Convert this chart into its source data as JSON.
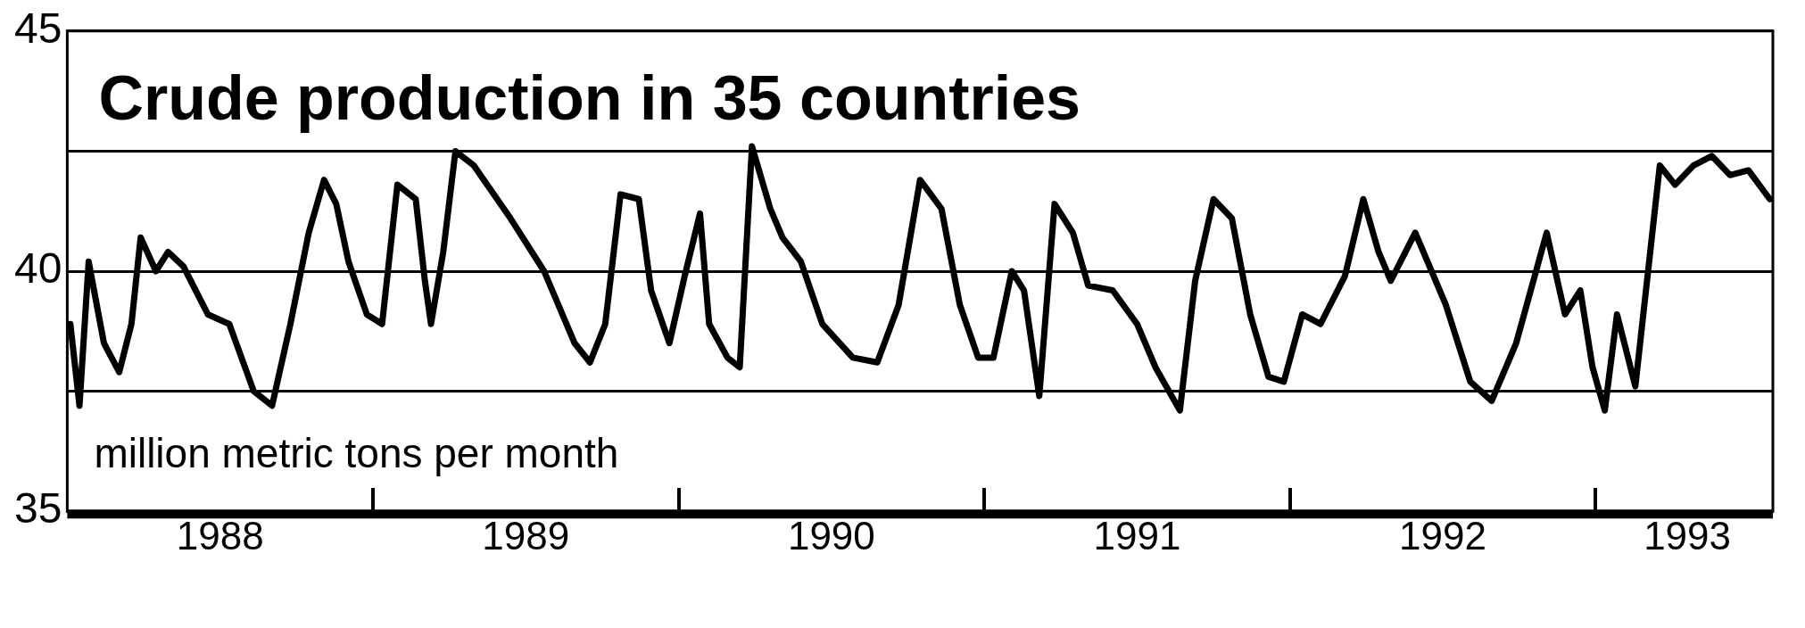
{
  "chart_data": {
    "type": "line",
    "title": "Crude production in 35 countries",
    "subtitle": "million metric tons per month",
    "x": [
      1988.01,
      1988.04,
      1988.07,
      1988.12,
      1988.17,
      1988.21,
      1988.24,
      1988.29,
      1988.33,
      1988.38,
      1988.46,
      1988.53,
      1988.61,
      1988.67,
      1988.73,
      1988.79,
      1988.84,
      1988.88,
      1988.92,
      1988.98,
      1989.03,
      1989.08,
      1989.14,
      1989.17,
      1989.19,
      1989.23,
      1989.27,
      1989.33,
      1989.45,
      1989.56,
      1989.66,
      1989.71,
      1989.76,
      1989.81,
      1989.87,
      1989.91,
      1989.97,
      1990.02,
      1990.07,
      1990.1,
      1990.16,
      1990.2,
      1990.24,
      1990.3,
      1990.34,
      1990.4,
      1990.47,
      1990.57,
      1990.65,
      1990.72,
      1990.79,
      1990.86,
      1990.92,
      1990.98,
      1991.03,
      1991.09,
      1991.13,
      1991.18,
      1991.23,
      1991.29,
      1991.34,
      1991.42,
      1991.5,
      1991.56,
      1991.64,
      1991.69,
      1991.75,
      1991.81,
      1991.87,
      1991.93,
      1991.98,
      1992.04,
      1992.1,
      1992.18,
      1992.24,
      1992.29,
      1992.33,
      1992.41,
      1992.51,
      1992.59,
      1992.66,
      1992.74,
      1992.84,
      1992.9,
      1992.95,
      1992.99,
      1993.03,
      1993.07,
      1993.13,
      1993.21,
      1993.26,
      1993.32,
      1993.38,
      1993.44,
      1993.5,
      1993.57
    ],
    "series": [
      {
        "color": "#000000",
        "values": [
          38.9,
          37.2,
          40.2,
          38.5,
          37.9,
          38.9,
          40.7,
          40.0,
          40.4,
          40.1,
          39.1,
          38.9,
          37.5,
          37.2,
          38.9,
          40.8,
          41.9,
          41.4,
          40.2,
          39.1,
          38.9,
          41.8,
          41.5,
          39.8,
          38.9,
          40.4,
          42.5,
          42.2,
          41.1,
          40.0,
          38.5,
          38.1,
          38.9,
          41.6,
          41.5,
          39.6,
          38.5,
          39.9,
          41.2,
          38.9,
          38.2,
          38.0,
          42.6,
          41.3,
          40.7,
          40.2,
          38.9,
          38.2,
          38.1,
          39.3,
          41.9,
          41.3,
          39.3,
          38.2,
          38.2,
          40.0,
          39.6,
          37.4,
          41.4,
          40.8,
          39.7,
          39.6,
          38.9,
          38.0,
          37.1,
          39.8,
          41.5,
          41.1,
          39.1,
          37.8,
          37.7,
          39.1,
          38.9,
          39.9,
          41.5,
          40.4,
          39.8,
          40.8,
          39.3,
          37.7,
          37.3,
          38.5,
          40.8,
          39.1,
          39.6,
          38.0,
          37.1,
          39.1,
          37.6,
          42.2,
          41.8,
          42.2,
          42.4,
          42.0,
          42.1,
          41.5
        ]
      }
    ],
    "xlim": [
      1988,
      1993.58
    ],
    "xticks": [
      {
        "value": 1988.5,
        "label": "1988"
      },
      {
        "value": 1989.5,
        "label": "1989"
      },
      {
        "value": 1990.5,
        "label": "1990"
      },
      {
        "value": 1991.5,
        "label": "1991"
      },
      {
        "value": 1992.5,
        "label": "1992"
      },
      {
        "value": 1993.3,
        "label": "1993"
      }
    ],
    "ylim": [
      35,
      45
    ],
    "yticks": [
      35,
      {
        "value": 37.5,
        "label": null
      },
      40,
      {
        "value": 42.5,
        "label": null
      },
      45
    ],
    "grid": "y",
    "marker": "none",
    "line_style": "solid"
  }
}
